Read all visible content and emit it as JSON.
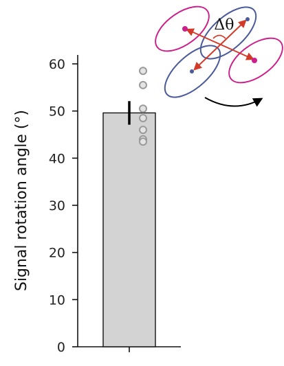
{
  "chart_data": {
    "type": "bar",
    "categories": [
      ""
    ],
    "values": [
      49.6
    ],
    "error": [
      2.5
    ],
    "points": [
      58.5,
      55.5,
      50.5,
      48.5,
      46.0,
      44.0,
      43.5
    ],
    "ylabel": "Signal rotation angle (°)",
    "xlabel": "",
    "ylim": [
      0,
      60
    ],
    "yticks": [
      0,
      10,
      20,
      30,
      40,
      50,
      60
    ],
    "grid": false,
    "colors": {
      "bar_fill": "#d3d3d3",
      "bar_edge": "#111111",
      "points": "#9a9a9a",
      "error": "#000000"
    }
  },
  "annotation": {
    "label": "Δθ",
    "colors": {
      "magenta": "#cc1f8a",
      "blue": "#4a5a9a",
      "arrow_red": "#d23a2a",
      "curve": "#000000"
    }
  }
}
